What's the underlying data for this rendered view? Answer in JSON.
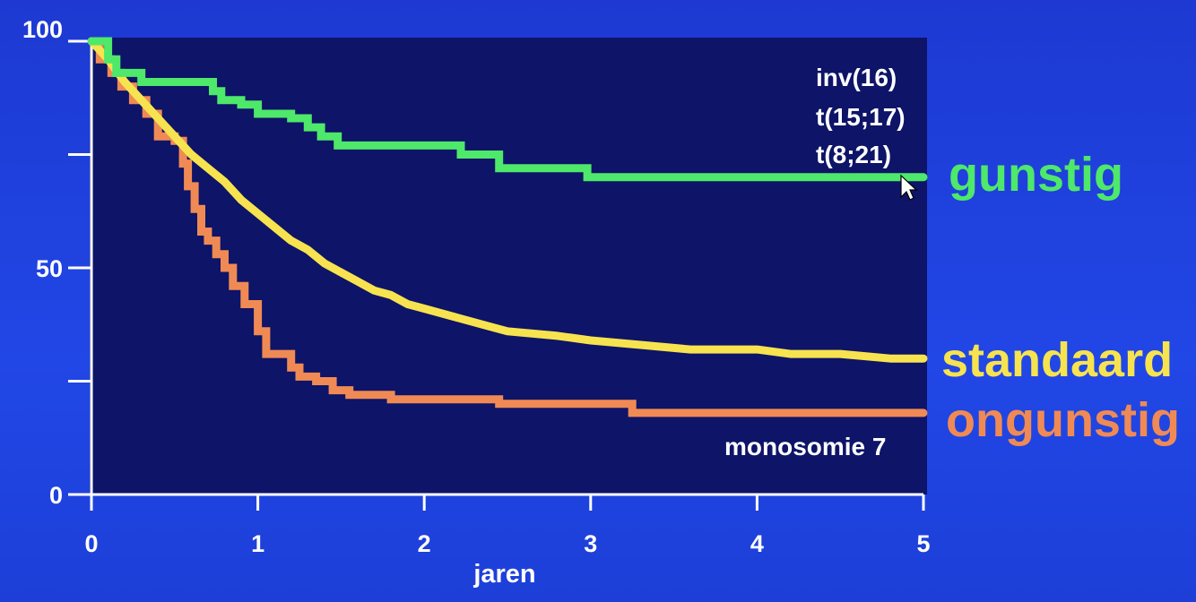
{
  "chart_data": {
    "type": "line",
    "xlabel": "jaren",
    "ylabel": "",
    "title": "",
    "xlim": [
      0,
      5
    ],
    "ylim": [
      0,
      100
    ],
    "x_ticks": [
      "0",
      "1",
      "2",
      "3",
      "4",
      "5"
    ],
    "y_ticks": [
      "0",
      "50",
      "100"
    ],
    "annotations": {
      "favorable_subtypes": [
        "inv(16)",
        "t(15;17)",
        "t(8;21)"
      ],
      "unfavorable_subtype": "monosomie 7"
    },
    "series": [
      {
        "name": "gunstig",
        "color": "#4ee86a",
        "step": true,
        "points": [
          [
            0,
            100
          ],
          [
            0.1,
            100
          ],
          [
            0.1,
            96
          ],
          [
            0.15,
            96
          ],
          [
            0.15,
            93
          ],
          [
            0.3,
            93
          ],
          [
            0.3,
            91
          ],
          [
            0.73,
            91
          ],
          [
            0.73,
            89
          ],
          [
            0.78,
            89
          ],
          [
            0.78,
            87
          ],
          [
            0.9,
            87
          ],
          [
            0.9,
            86
          ],
          [
            1.0,
            86
          ],
          [
            1.0,
            84
          ],
          [
            1.2,
            84
          ],
          [
            1.2,
            83
          ],
          [
            1.3,
            83
          ],
          [
            1.3,
            81
          ],
          [
            1.38,
            81
          ],
          [
            1.38,
            79
          ],
          [
            1.48,
            79
          ],
          [
            1.48,
            77
          ],
          [
            2.22,
            77
          ],
          [
            2.22,
            75
          ],
          [
            2.45,
            75
          ],
          [
            2.45,
            72
          ],
          [
            2.98,
            72
          ],
          [
            2.98,
            70
          ],
          [
            5.0,
            70
          ]
        ]
      },
      {
        "name": "standaard",
        "color": "#f7e34f",
        "step": false,
        "points": [
          [
            0,
            100
          ],
          [
            0.1,
            96
          ],
          [
            0.2,
            91
          ],
          [
            0.3,
            87
          ],
          [
            0.4,
            83
          ],
          [
            0.5,
            79
          ],
          [
            0.6,
            75
          ],
          [
            0.7,
            72
          ],
          [
            0.8,
            69
          ],
          [
            0.9,
            65
          ],
          [
            1.0,
            62
          ],
          [
            1.1,
            59
          ],
          [
            1.2,
            56
          ],
          [
            1.3,
            54
          ],
          [
            1.4,
            51
          ],
          [
            1.5,
            49
          ],
          [
            1.6,
            47
          ],
          [
            1.7,
            45
          ],
          [
            1.8,
            44
          ],
          [
            1.9,
            42
          ],
          [
            2.0,
            41
          ],
          [
            2.2,
            39
          ],
          [
            2.4,
            37
          ],
          [
            2.5,
            36
          ],
          [
            2.8,
            35
          ],
          [
            3.0,
            34
          ],
          [
            3.3,
            33
          ],
          [
            3.6,
            32
          ],
          [
            4.0,
            32
          ],
          [
            4.2,
            31
          ],
          [
            4.5,
            31
          ],
          [
            4.8,
            30
          ],
          [
            5.0,
            30
          ]
        ]
      },
      {
        "name": "ongunstig",
        "color": "#f08a55",
        "step": true,
        "points": [
          [
            0,
            100
          ],
          [
            0.05,
            100
          ],
          [
            0.05,
            96
          ],
          [
            0.12,
            96
          ],
          [
            0.12,
            93
          ],
          [
            0.18,
            93
          ],
          [
            0.18,
            90
          ],
          [
            0.25,
            90
          ],
          [
            0.25,
            87
          ],
          [
            0.33,
            87
          ],
          [
            0.33,
            84
          ],
          [
            0.4,
            84
          ],
          [
            0.4,
            79
          ],
          [
            0.5,
            79
          ],
          [
            0.5,
            78
          ],
          [
            0.55,
            78
          ],
          [
            0.55,
            73
          ],
          [
            0.58,
            73
          ],
          [
            0.58,
            68
          ],
          [
            0.62,
            68
          ],
          [
            0.62,
            63
          ],
          [
            0.66,
            63
          ],
          [
            0.66,
            58
          ],
          [
            0.7,
            58
          ],
          [
            0.7,
            56
          ],
          [
            0.75,
            56
          ],
          [
            0.75,
            53
          ],
          [
            0.8,
            53
          ],
          [
            0.8,
            50
          ],
          [
            0.85,
            50
          ],
          [
            0.85,
            46
          ],
          [
            0.92,
            46
          ],
          [
            0.92,
            42
          ],
          [
            1.0,
            42
          ],
          [
            1.0,
            36
          ],
          [
            1.05,
            36
          ],
          [
            1.05,
            31
          ],
          [
            1.2,
            31
          ],
          [
            1.2,
            28
          ],
          [
            1.25,
            28
          ],
          [
            1.25,
            26
          ],
          [
            1.35,
            26
          ],
          [
            1.35,
            25
          ],
          [
            1.45,
            25
          ],
          [
            1.45,
            23
          ],
          [
            1.55,
            23
          ],
          [
            1.55,
            22
          ],
          [
            1.8,
            22
          ],
          [
            1.8,
            21
          ],
          [
            2.45,
            21
          ],
          [
            2.45,
            20
          ],
          [
            3.25,
            20
          ],
          [
            3.25,
            18
          ],
          [
            5.0,
            18
          ]
        ]
      }
    ]
  }
}
